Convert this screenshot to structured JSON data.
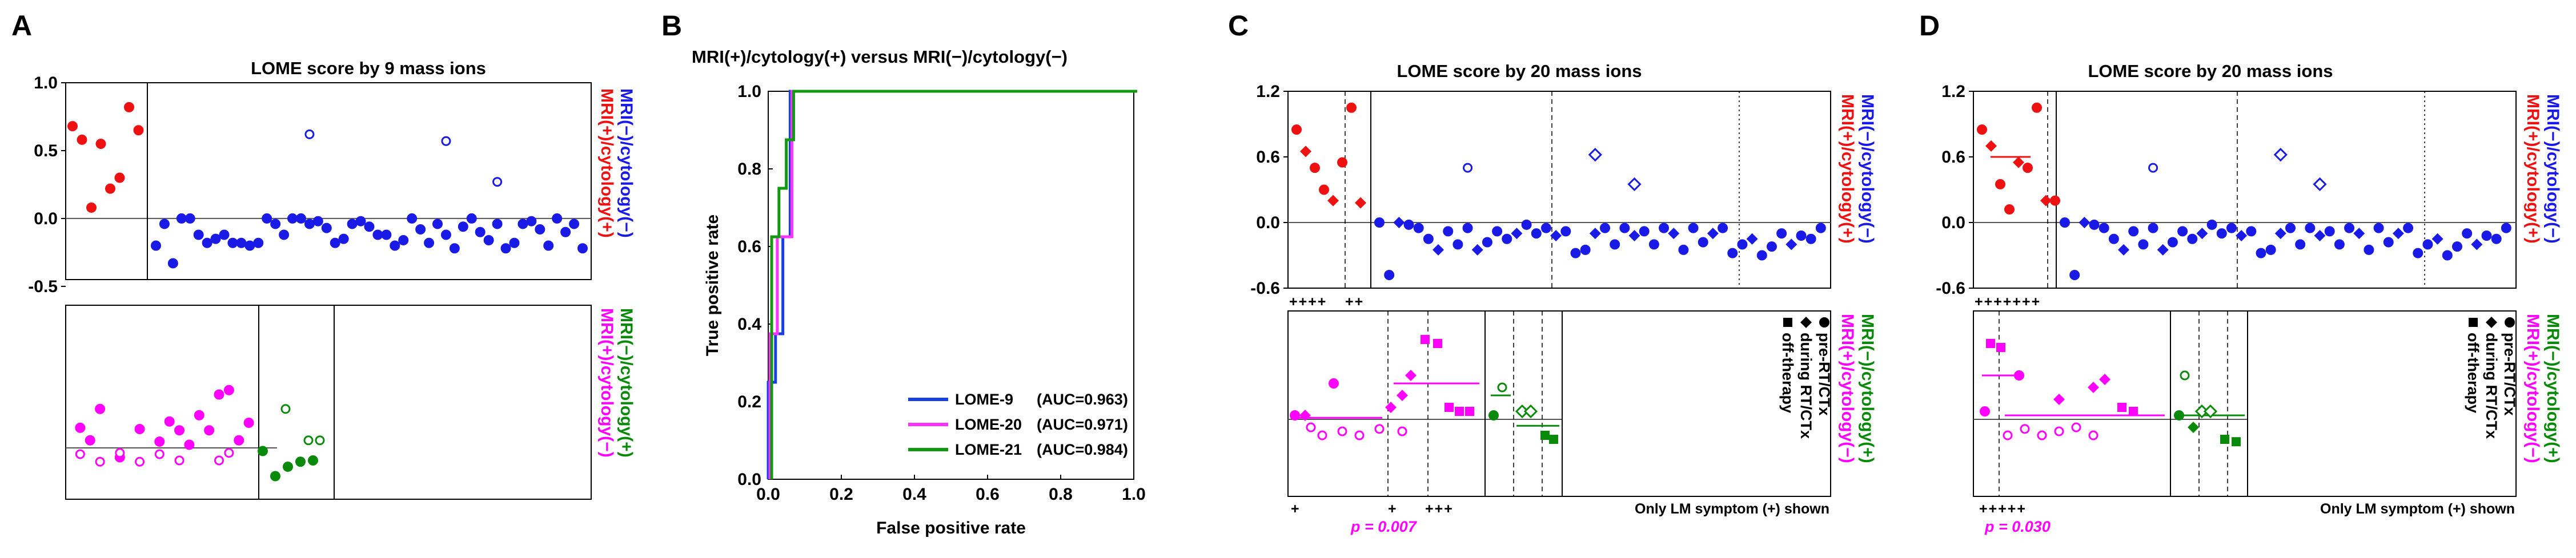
{
  "colors": {
    "red": "#ee1111",
    "blue": "#1a1ae6",
    "magenta": "#ff00ff",
    "green": "#0a8a0a",
    "roc_blue": "#1840e0",
    "roc_magenta": "#ff33ff",
    "roc_green": "#119911",
    "axis": "#000000",
    "zero": "#555555"
  },
  "chart_data": [
    {
      "panel": "A",
      "type": "scatter",
      "title": "LOME score by 9 mass ions",
      "ylim": [
        -0.45,
        1.0
      ],
      "yticks": [
        "1.0",
        "0.5",
        "0.0",
        "-0.5"
      ],
      "ytick_values": [
        1.0,
        0.5,
        0.0,
        -0.5
      ],
      "side_labels": {
        "red": "MRI(+)/cytology(+)",
        "blue": "MRI(−)/cytology(−)"
      },
      "groups": [
        {
          "name": "MRI(+)/cytology(+)",
          "color": "red",
          "marker": "circle-filled",
          "values": [
            0.68,
            0.58,
            0.08,
            0.55,
            0.22,
            0.3,
            0.82,
            0.65
          ]
        },
        {
          "name": "MRI(−)/cytology(−)",
          "color": "blue",
          "marker": "circle-filled",
          "values": [
            -0.2,
            -0.04,
            -0.33,
            0.0,
            0.0,
            -0.12,
            -0.18,
            -0.15,
            -0.12,
            -0.18,
            -0.18,
            -0.2,
            -0.18,
            0.0,
            -0.04,
            -0.12,
            0.0,
            0.0,
            -0.04,
            -0.02,
            -0.07,
            -0.18,
            -0.15,
            -0.04,
            -0.02,
            -0.06,
            -0.12,
            -0.12,
            -0.2,
            -0.16,
            0.0,
            -0.08,
            -0.18,
            -0.04,
            -0.12,
            -0.22,
            -0.06,
            0.0,
            -0.1,
            -0.16,
            -0.04,
            -0.22,
            -0.18,
            -0.04,
            -0.02,
            -0.08,
            -0.2,
            0.0,
            -0.1,
            -0.04,
            -0.22
          ]
        },
        {
          "name": "outliers",
          "color": "blue",
          "marker": "circle-open",
          "values": [
            0.62,
            0.57,
            0.27
          ],
          "positions": [
            18,
            34,
            40
          ]
        }
      ]
    },
    {
      "panel": "A-lower",
      "type": "scatter",
      "side_labels": {
        "magenta": "MRI(+)/cytology(−)",
        "green": "MRI(−)/cytology(+)"
      },
      "groups": [
        {
          "name": "MRI(+)/cytology(−) filled",
          "color": "magenta",
          "marker": "circle-filled",
          "values": [
            0.32,
            0.12,
            0.62,
            -0.15,
            0.3,
            0.1,
            0.42,
            0.28,
            0.05,
            0.52,
            0.28,
            0.85,
            0.92,
            0.12,
            0.4
          ],
          "positions": [
            1,
            2,
            3,
            5,
            7,
            9,
            10,
            11,
            12,
            13,
            14,
            15,
            16,
            17,
            18
          ]
        },
        {
          "name": "MRI(+)/cytology(−) open",
          "color": "magenta",
          "marker": "circle-open",
          "values": [
            -0.1,
            -0.22,
            -0.08,
            -0.22,
            -0.1,
            -0.2,
            -0.2,
            -0.08
          ],
          "positions": [
            1,
            3,
            5,
            7,
            9,
            11,
            15,
            16
          ]
        },
        {
          "name": "MRI(−)/cytology(+) filled",
          "color": "green",
          "marker": "circle-filled",
          "values": [
            -0.05,
            -0.45,
            -0.3,
            -0.22,
            -0.2
          ]
        },
        {
          "name": "MRI(−)/cytology(+) open",
          "color": "green",
          "marker": "circle-open",
          "values": [
            0.62,
            0.12,
            0.12
          ],
          "positions": [
            2,
            4,
            5
          ]
        }
      ]
    },
    {
      "panel": "B",
      "type": "line",
      "title": "MRI(+)/cytology(+) versus MRI(−)/cytology(−)",
      "xlabel": "False positive rate",
      "ylabel": "True positive rate",
      "xlim": [
        0,
        1
      ],
      "ylim": [
        0,
        1
      ],
      "xticks": [
        "0.0",
        "0.2",
        "0.4",
        "0.6",
        "0.8",
        "1.0"
      ],
      "yticks": [
        "1.0",
        "0.8",
        "0.6",
        "0.4",
        "0.2",
        "0.0"
      ],
      "series": [
        {
          "name": "LOME-9",
          "auc": "(AUC=0.963)",
          "color": "roc_blue",
          "x": [
            0,
            0,
            0.02,
            0.02,
            0.04,
            0.04,
            0.06,
            0.06,
            1.0
          ],
          "y": [
            0,
            0.25,
            0.25,
            0.375,
            0.375,
            0.625,
            0.625,
            1.0,
            1.0
          ]
        },
        {
          "name": "LOME-20",
          "auc": "(AUC=0.971)",
          "color": "roc_magenta",
          "x": [
            0,
            0,
            0.02,
            0.02,
            0.04,
            0.04,
            0.06,
            0.06,
            1.0
          ],
          "y": [
            0,
            0.375,
            0.375,
            0.625,
            0.625,
            0.625,
            0.625,
            1.0,
            1.0
          ]
        },
        {
          "name": "LOME-21",
          "auc": "(AUC=0.984)",
          "color": "roc_green",
          "x": [
            0,
            0,
            0.02,
            0.02,
            0.04,
            0.04,
            0.06,
            0.06,
            1.0
          ],
          "y": [
            0,
            0.625,
            0.625,
            0.75,
            0.75,
            0.875,
            0.875,
            1.0,
            1.0
          ]
        }
      ]
    },
    {
      "panel": "C",
      "type": "scatter",
      "title": "LOME score by 20 mass ions",
      "ylim": [
        -0.6,
        1.2
      ],
      "yticks": [
        "1.2",
        "0.6",
        "0.0",
        "-0.6"
      ],
      "ytick_values": [
        1.2,
        0.6,
        0.0,
        -0.6
      ],
      "plus_labels": [
        "++++",
        "++"
      ],
      "side_labels": {
        "red": "MRI(+)/cytology(+)",
        "blue": "MRI(−)/cytology(−)"
      },
      "lower_side_labels": {
        "magenta": "MRI(+)/cytology(−)",
        "green": "MRI(−)/cytology(+)"
      },
      "lower_legend": [
        "off-therapy",
        "during RT/CTx",
        "pre-RT/CTx"
      ],
      "lower_note": "Only LM symptom (+) shown",
      "lower_plus_labels": [
        "+",
        "+",
        "+++"
      ],
      "pvalue": "p = 0.007"
    },
    {
      "panel": "D",
      "type": "scatter",
      "title": "LOME score by 20 mass ions",
      "ylim": [
        -0.6,
        1.2
      ],
      "yticks": [
        "1.2",
        "0.6",
        "0.0",
        "-0.6"
      ],
      "ytick_values": [
        1.2,
        0.6,
        0.0,
        -0.6
      ],
      "plus_labels": [
        "+++++++"
      ],
      "side_labels": {
        "red": "MRI(+)/cytology(+)",
        "blue": "MRI(−)/cytology(−)"
      },
      "lower_side_labels": {
        "magenta": "MRI(+)/cytology(−)",
        "green": "MRI(−)/cytology(+)"
      },
      "lower_legend": [
        "off-therapy",
        "during RT/CTx",
        "pre-RT/CTx"
      ],
      "lower_note": "Only LM symptom (+) shown",
      "lower_plus_labels": [
        "+++++"
      ],
      "pvalue": "p = 0.030"
    }
  ],
  "panel_letters": [
    "A",
    "B",
    "C",
    "D"
  ]
}
